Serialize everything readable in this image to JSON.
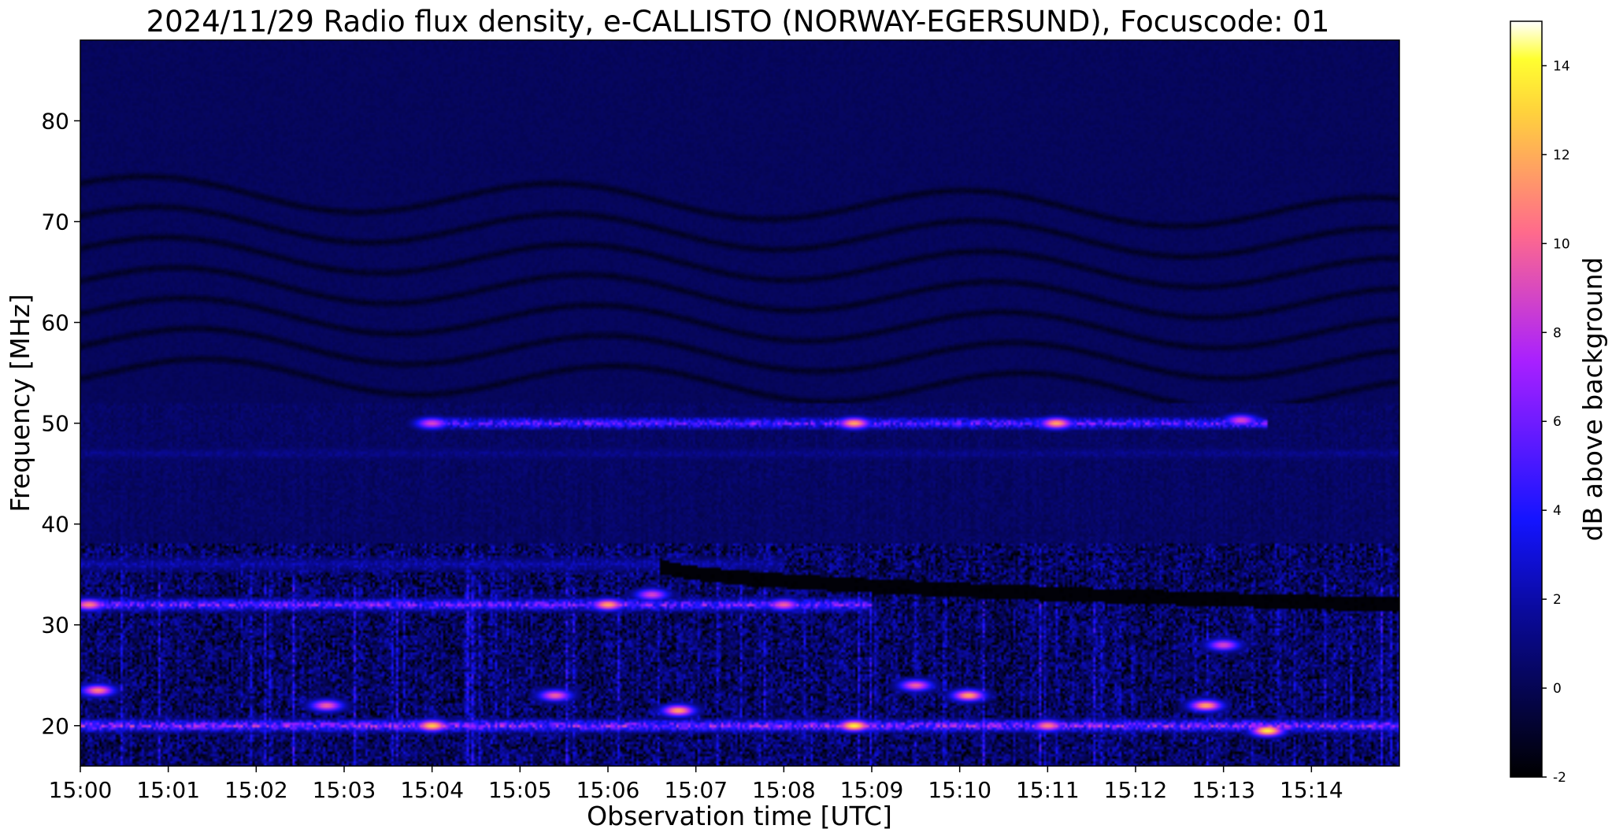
{
  "chart_data": {
    "type": "heatmap",
    "title": "2024/11/29  Radio flux density, e-CALLISTO (NORWAY-EGERSUND), Focuscode: 01",
    "xlabel": "Observation time [UTC]",
    "ylabel": "Frequency [MHz]",
    "x_ticks": [
      "15:00",
      "15:01",
      "15:02",
      "15:03",
      "15:04",
      "15:05",
      "15:06",
      "15:07",
      "15:08",
      "15:09",
      "15:10",
      "15:11",
      "15:12",
      "15:13",
      "15:14"
    ],
    "x_range_minutes": [
      0,
      15
    ],
    "y_ticks": [
      20,
      30,
      40,
      50,
      60,
      70,
      80
    ],
    "ylim": [
      16,
      88
    ],
    "colorbar": {
      "label": "dB above background",
      "range": [
        -2,
        15
      ],
      "ticks": [
        -2,
        0,
        2,
        4,
        6,
        8,
        10,
        12,
        14
      ],
      "colormap": "gnuplot2",
      "stops": [
        {
          "v": 0.0,
          "color": "#000000"
        },
        {
          "v": 0.22,
          "color": "#0a0a9c"
        },
        {
          "v": 0.34,
          "color": "#1414ff"
        },
        {
          "v": 0.55,
          "color": "#a820ff"
        },
        {
          "v": 0.72,
          "color": "#ff6a8c"
        },
        {
          "v": 0.88,
          "color": "#ffd23c"
        },
        {
          "v": 0.95,
          "color": "#ffff30"
        },
        {
          "v": 1.0,
          "color": "#ffffff"
        }
      ]
    },
    "features": {
      "background_upper_db": 0.2,
      "wavy_dark_lines_mhz": [
        55,
        58,
        61,
        64,
        67,
        70,
        73
      ],
      "bright_bands": [
        {
          "freq_mhz": 32,
          "t_start_min": 0.0,
          "t_end_min": 9.0,
          "peak_db": 9
        },
        {
          "freq_mhz": 50,
          "t_start_min": 4.0,
          "t_end_min": 13.5,
          "peak_db": 8
        },
        {
          "freq_mhz": 36,
          "t_start_min": 0.0,
          "t_end_min": 8.0,
          "peak_db": 3
        },
        {
          "freq_mhz": 47,
          "t_start_min": 0.0,
          "t_end_min": 15.0,
          "peak_db": 2
        },
        {
          "freq_mhz": 20,
          "t_start_min": 0.0,
          "t_end_min": 15.0,
          "peak_db": 10
        }
      ],
      "bright_spots": [
        {
          "t_min": 0.1,
          "freq_mhz": 32,
          "db": 11
        },
        {
          "t_min": 0.2,
          "freq_mhz": 23.5,
          "db": 11
        },
        {
          "t_min": 6.0,
          "freq_mhz": 32,
          "db": 12
        },
        {
          "t_min": 6.5,
          "freq_mhz": 33,
          "db": 9
        },
        {
          "t_min": 4.0,
          "freq_mhz": 50,
          "db": 9
        },
        {
          "t_min": 8.8,
          "freq_mhz": 50,
          "db": 12
        },
        {
          "t_min": 11.1,
          "freq_mhz": 50,
          "db": 12
        },
        {
          "t_min": 13.2,
          "freq_mhz": 50.3,
          "db": 9
        },
        {
          "t_min": 4.0,
          "freq_mhz": 20,
          "db": 13
        },
        {
          "t_min": 6.8,
          "freq_mhz": 21.5,
          "db": 12
        },
        {
          "t_min": 8.8,
          "freq_mhz": 20,
          "db": 14
        },
        {
          "t_min": 10.1,
          "freq_mhz": 23,
          "db": 12
        },
        {
          "t_min": 11.0,
          "freq_mhz": 20,
          "db": 11
        },
        {
          "t_min": 12.8,
          "freq_mhz": 22,
          "db": 12
        },
        {
          "t_min": 13.5,
          "freq_mhz": 19.5,
          "db": 14
        },
        {
          "t_min": 2.8,
          "freq_mhz": 22,
          "db": 10
        },
        {
          "t_min": 5.4,
          "freq_mhz": 23,
          "db": 10
        },
        {
          "t_min": 9.5,
          "freq_mhz": 24,
          "db": 10
        },
        {
          "t_min": 8.0,
          "freq_mhz": 32,
          "db": 10
        },
        {
          "t_min": 13.0,
          "freq_mhz": 28,
          "db": 9
        }
      ],
      "dark_drift_lane": {
        "t_start_min": 6.6,
        "f_start_mhz": 36,
        "t_end_min": 15,
        "f_end_mhz": 32
      }
    }
  }
}
